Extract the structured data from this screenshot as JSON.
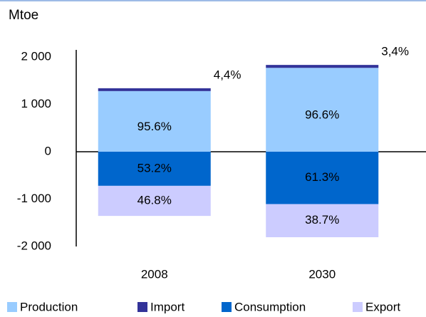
{
  "chart_data": {
    "type": "bar",
    "stacked": true,
    "title": "Mtoe",
    "categories": [
      "2008",
      "2030"
    ],
    "series": [
      {
        "name": "Production",
        "color": "#99ccff",
        "values": [
          1280,
          1770
        ],
        "share_labels": [
          "95.6%",
          "96.6%"
        ]
      },
      {
        "name": "Import",
        "color": "#333399",
        "values": [
          60,
          62
        ],
        "share_labels": [
          "4,4%",
          "3,4%"
        ]
      },
      {
        "name": "Consumption",
        "color": "#0066cc",
        "values": [
          -720,
          -1105
        ],
        "share_labels": [
          "53.2%",
          "61.3%"
        ]
      },
      {
        "name": "Export",
        "color": "#ccccff",
        "values": [
          -635,
          -700
        ],
        "share_labels": [
          "46.8%",
          "38.7%"
        ]
      }
    ],
    "ylim": [
      -2000,
      2150
    ],
    "yticks": [
      {
        "value": -2000,
        "label": "-2 000"
      },
      {
        "value": -1000,
        "label": "-1 000"
      },
      0,
      {
        "value": 1000,
        "label": "1 000"
      },
      {
        "value": 2000,
        "label": "2 000"
      }
    ],
    "legend": "bottom"
  }
}
